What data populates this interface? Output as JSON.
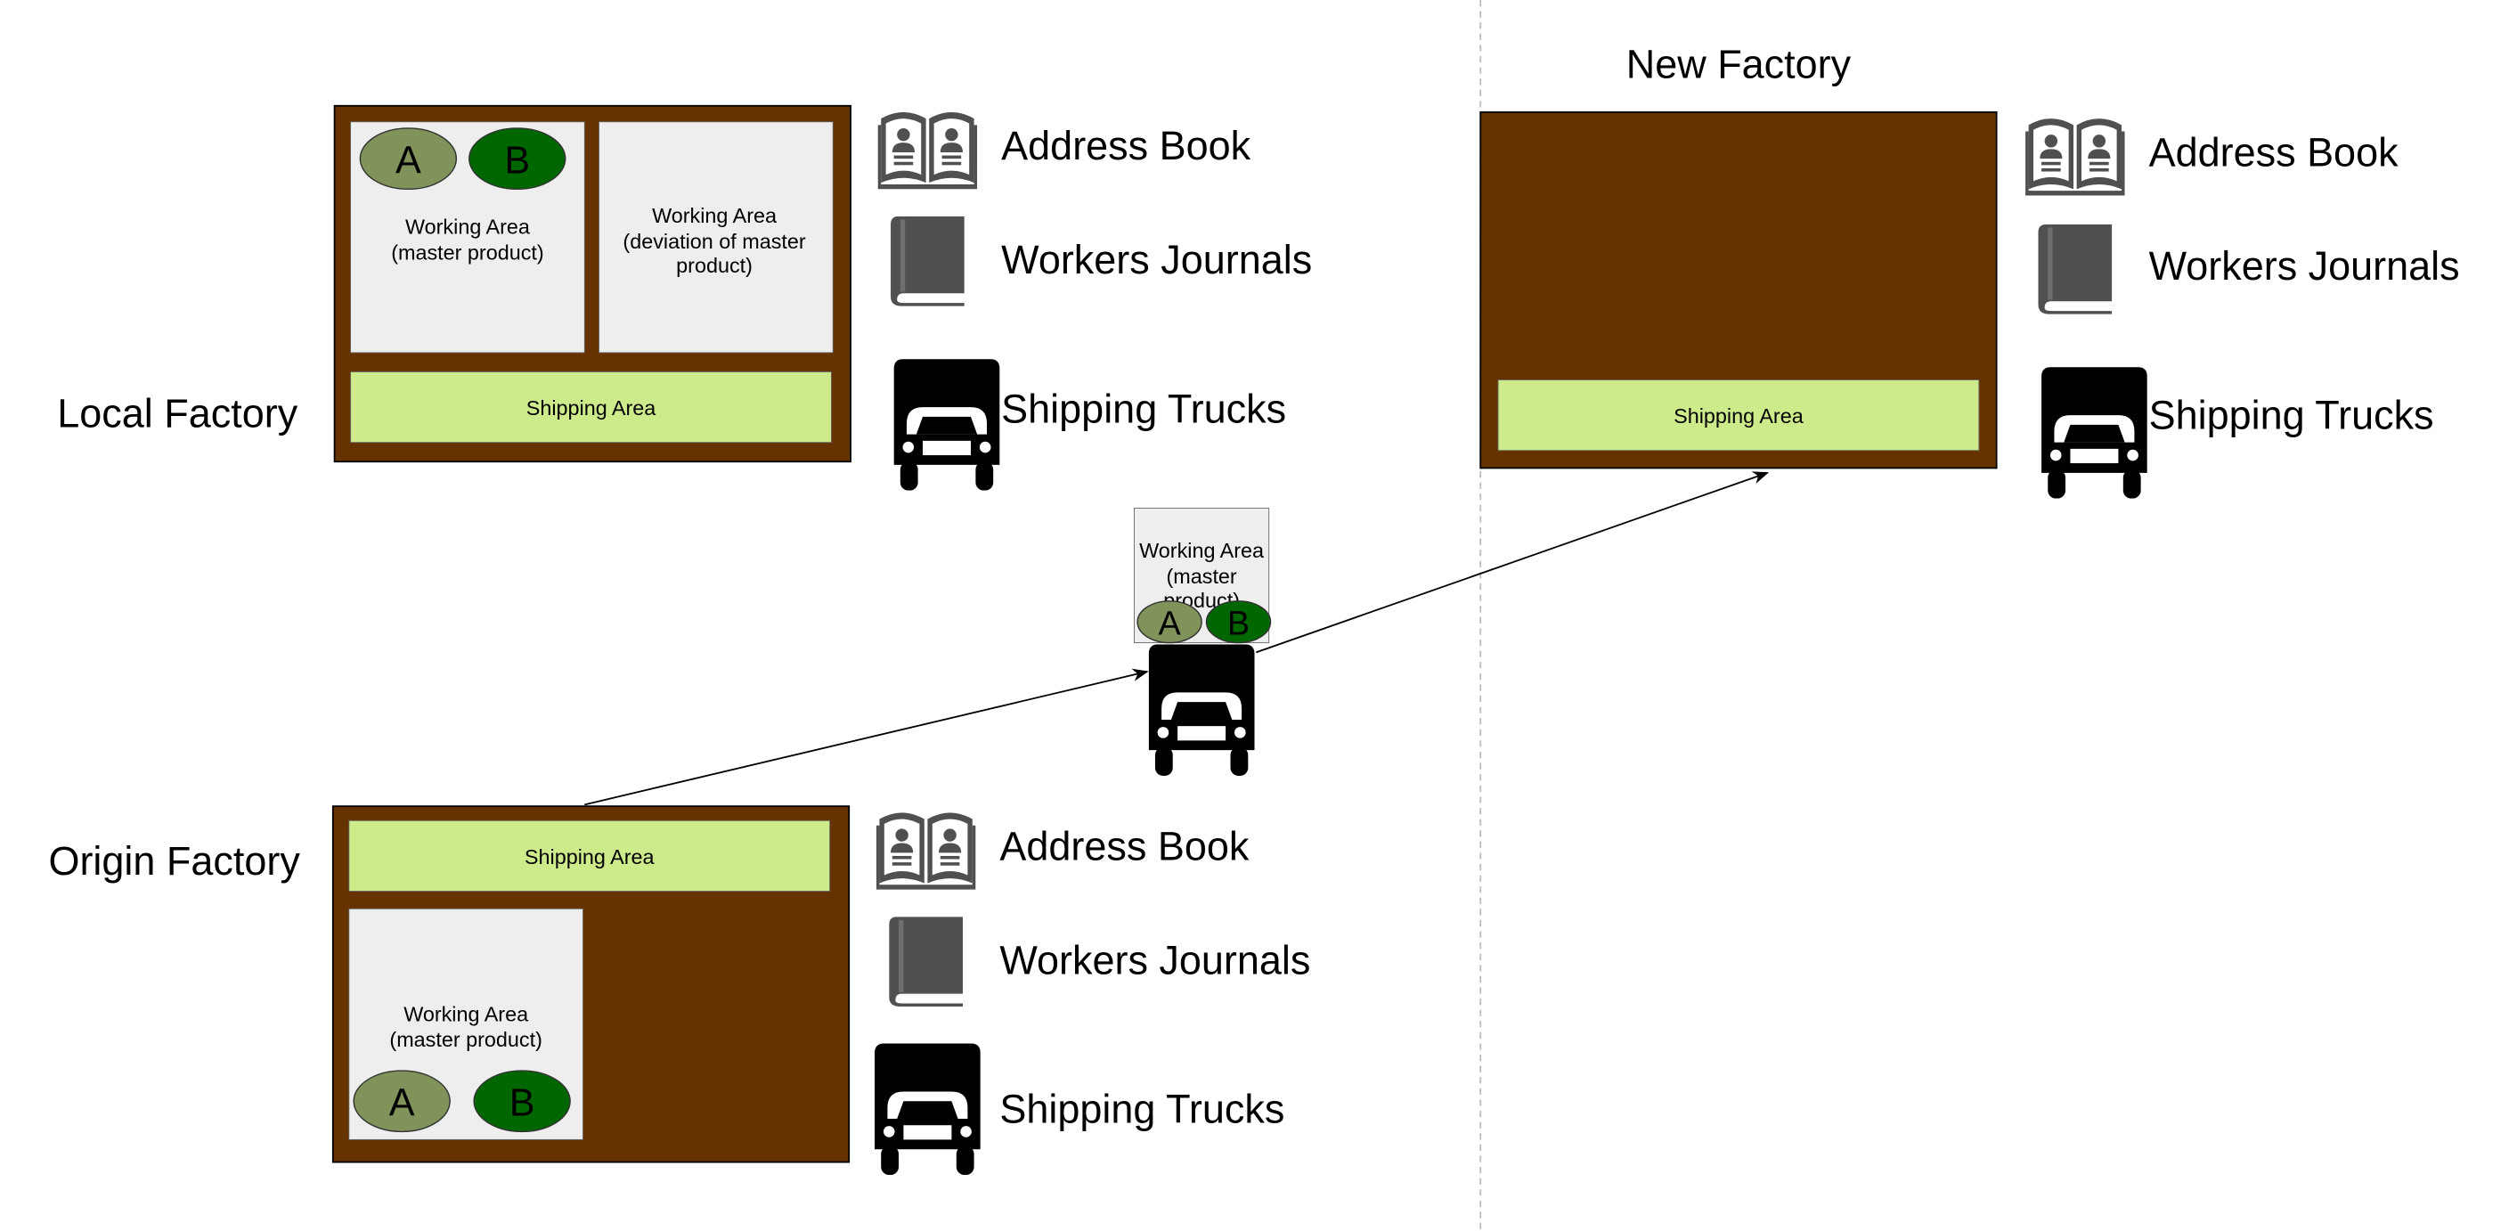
{
  "colors": {
    "factory": "#663300",
    "working_area": "#eeeeee",
    "shipping_area": "#cdeb8b",
    "ellipse_a": "#7f935a",
    "ellipse_b": "#006600",
    "icon_gray": "#505050",
    "divider": "#bbbbbb"
  },
  "local_factory": {
    "label": "Local Factory",
    "working_area_1": [
      "Working Area",
      "(master product)"
    ],
    "working_area_2": [
      "Working Area",
      "(deviation of master",
      "product)"
    ],
    "shipping_area": "Shipping Area",
    "ellipse_a": "A",
    "ellipse_b": "B",
    "legend": {
      "address_book": "Address Book",
      "workers_journals": "Workers Journals",
      "shipping_trucks": "Shipping Trucks"
    }
  },
  "origin_factory": {
    "label": "Origin Factory",
    "shipping_area": "Shipping Area",
    "working_area": [
      "Working Area",
      "(master product)"
    ],
    "ellipse_a": "A",
    "ellipse_b": "B",
    "legend": {
      "address_book": "Address Book",
      "workers_journals": "Workers Journals",
      "shipping_trucks": "Shipping Trucks"
    }
  },
  "new_factory": {
    "label": "New Factory",
    "shipping_area": "Shipping Area",
    "legend": {
      "address_book": "Address Book",
      "workers_journals": "Workers Journals",
      "shipping_trucks": "Shipping Trucks"
    }
  },
  "transport": {
    "working_area": [
      "Working Area",
      "(master",
      "product)"
    ],
    "ellipse_a": "A",
    "ellipse_b": "B"
  },
  "icons": [
    "address-book-icon",
    "journal-icon",
    "truck-icon",
    "arrow-icon"
  ]
}
